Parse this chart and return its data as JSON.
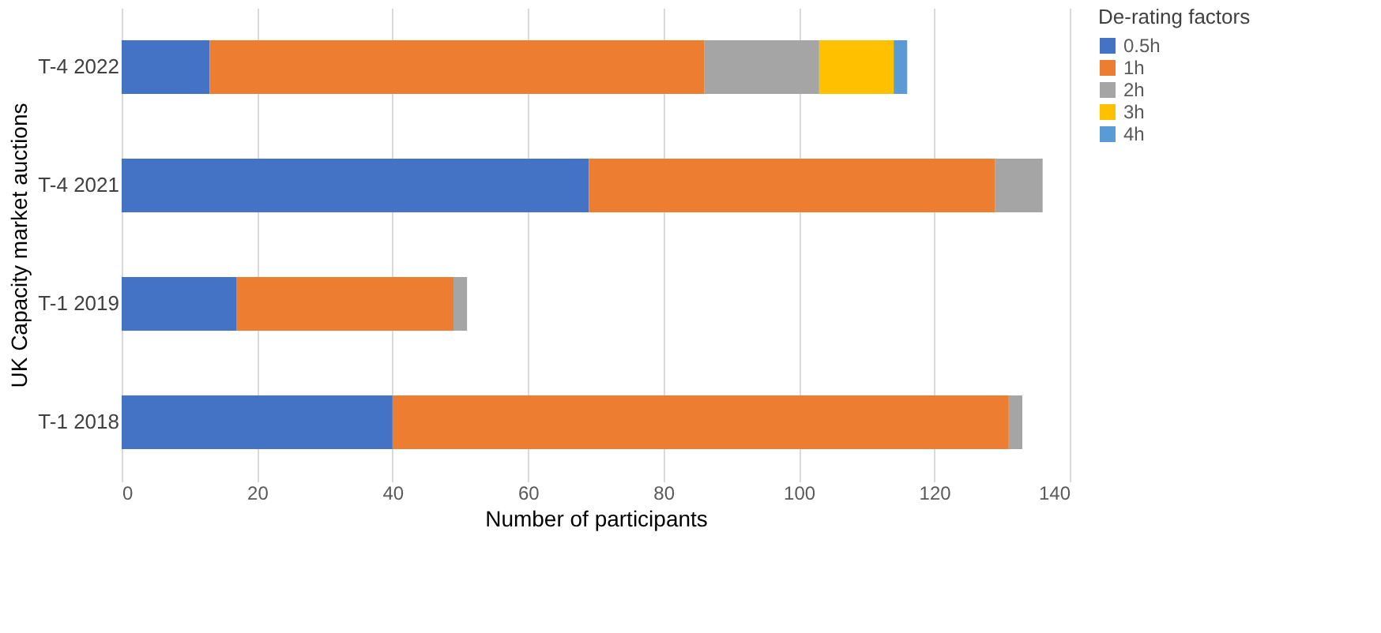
{
  "chart_data": {
    "type": "bar",
    "orientation": "horizontal",
    "stacked": true,
    "categories": [
      "T-4 2022",
      "T-4 2021",
      "T-1 2019",
      "T-1 2018"
    ],
    "series": [
      {
        "name": "0.5h",
        "color": "#4472c4",
        "values": [
          13,
          69,
          17,
          40
        ]
      },
      {
        "name": "1h",
        "color": "#ed7d31",
        "values": [
          73,
          60,
          32,
          91
        ]
      },
      {
        "name": "2h",
        "color": "#a5a5a5",
        "values": [
          17,
          7,
          2,
          2
        ]
      },
      {
        "name": "3h",
        "color": "#ffc000",
        "values": [
          11,
          null,
          null,
          null
        ]
      },
      {
        "name": "4h",
        "color": "#5b9bd5",
        "values": [
          2,
          null,
          null,
          null
        ]
      }
    ],
    "xlim": [
      0,
      140
    ],
    "xticks": [
      0,
      20,
      40,
      60,
      80,
      100,
      120,
      140
    ],
    "xlabel": "Number of participants",
    "ylabel": "UK Capacity market auctions",
    "legend_title": "De-rating factors",
    "legend": "right",
    "grid": "x"
  }
}
